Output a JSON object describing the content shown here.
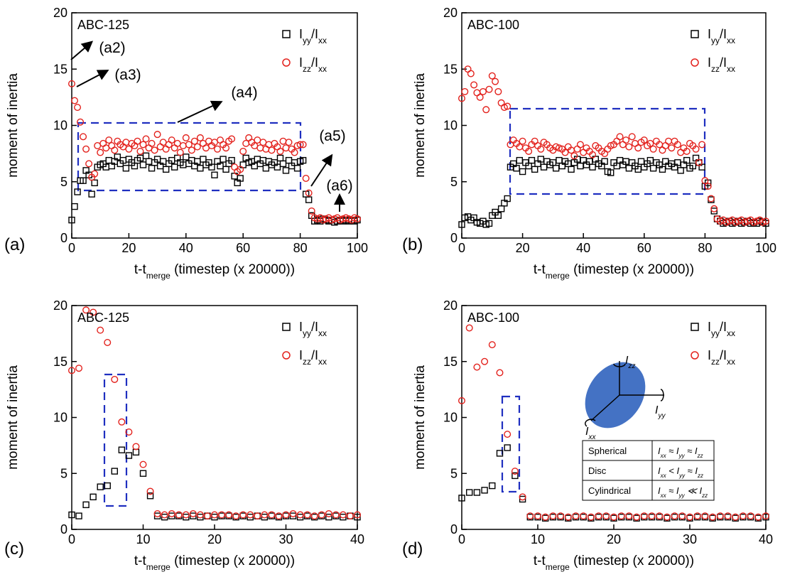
{
  "chart_data": [
    {
      "type": "scatter",
      "panel_label": "(a)",
      "label": "ABC-125",
      "ylabel": "moment of inertia",
      "xlabel": [
        "t-t",
        "merge",
        " (timestep (x 20000))"
      ],
      "annotations": [
        "(a2)",
        "(a3)",
        "(a4)",
        "(a5)",
        "(a6)"
      ],
      "xlim": [
        0,
        100
      ],
      "ylim": [
        0,
        20
      ],
      "xticks": [
        0,
        20,
        40,
        60,
        80,
        100
      ],
      "yticks": [
        0,
        5,
        10,
        15,
        20
      ],
      "x": [
        0,
        1,
        2,
        3,
        4,
        5,
        6,
        7,
        8,
        9,
        10,
        11,
        12,
        13,
        14,
        15,
        16,
        17,
        18,
        19,
        20,
        21,
        22,
        23,
        24,
        25,
        26,
        27,
        28,
        29,
        30,
        31,
        32,
        33,
        34,
        35,
        36,
        37,
        38,
        39,
        40,
        41,
        42,
        43,
        44,
        45,
        46,
        47,
        48,
        49,
        50,
        51,
        52,
        53,
        54,
        55,
        56,
        57,
        58,
        59,
        60,
        61,
        62,
        63,
        64,
        65,
        66,
        67,
        68,
        69,
        70,
        71,
        72,
        73,
        74,
        75,
        76,
        77,
        78,
        79,
        80,
        81,
        82,
        83,
        84,
        85,
        86,
        87,
        88,
        89,
        90,
        91,
        92,
        93,
        94,
        95,
        96,
        97,
        98,
        99,
        100
      ],
      "series": [
        {
          "name": [
            "I",
            "yy",
            "/I",
            "xx"
          ],
          "marker": "square",
          "color": "#000000",
          "values": [
            1.6,
            2.8,
            4.1,
            5.1,
            5.1,
            6.0,
            5.6,
            3.9,
            4.9,
            6.3,
            6.5,
            6.6,
            6.3,
            6.9,
            6.4,
            6.8,
            7.2,
            6.6,
            6.9,
            6.2,
            7.0,
            6.7,
            6.4,
            6.9,
            7.1,
            6.5,
            7.3,
            6.8,
            6.2,
            6.7,
            7.0,
            6.4,
            6.8,
            6.1,
            6.6,
            6.9,
            6.3,
            7.1,
            6.7,
            6.5,
            7.2,
            6.6,
            6.9,
            6.4,
            6.8,
            6.2,
            7.0,
            6.5,
            6.7,
            6.3,
            5.6,
            6.8,
            6.4,
            7.0,
            6.1,
            6.6,
            6.9,
            5.5,
            4.9,
            5.3,
            6.5,
            7.1,
            6.7,
            6.8,
            6.4,
            7.0,
            6.6,
            6.9,
            6.2,
            6.8,
            6.5,
            6.7,
            6.3,
            7.1,
            6.6,
            6.0,
            6.9,
            6.4,
            6.7,
            6.2,
            6.8,
            6.9,
            3.9,
            3.4,
            2.0,
            1.5,
            1.6,
            1.5,
            1.7,
            1.6,
            1.5,
            1.6,
            1.4,
            1.5,
            1.6,
            1.5,
            1.6,
            1.5,
            1.6,
            1.5,
            1.6
          ]
        },
        {
          "name": [
            "I",
            "zz",
            "/I",
            "xx"
          ],
          "marker": "circle",
          "color": "#e3211c",
          "values": [
            13.7,
            12.2,
            11.6,
            10.3,
            9.0,
            7.9,
            6.6,
            5.4,
            5.7,
            8.2,
            7.6,
            8.4,
            8.0,
            8.7,
            8.2,
            7.8,
            8.6,
            8.3,
            8.1,
            8.5,
            7.9,
            8.4,
            8.2,
            8.6,
            7.7,
            8.3,
            8.8,
            8.0,
            8.4,
            7.8,
            9.2,
            8.1,
            8.5,
            7.9,
            8.3,
            8.7,
            8.0,
            8.4,
            7.6,
            8.2,
            8.9,
            8.3,
            7.8,
            8.6,
            8.1,
            8.9,
            8.4,
            8.0,
            8.6,
            8.2,
            8.5,
            7.9,
            8.7,
            8.3,
            8.0,
            8.6,
            8.8,
            6.3,
            5.9,
            6.1,
            7.7,
            8.4,
            8.9,
            8.5,
            8.2,
            8.7,
            8.0,
            8.5,
            7.9,
            8.3,
            7.8,
            8.4,
            8.1,
            7.7,
            8.6,
            8.0,
            8.5,
            7.9,
            7.6,
            8.2,
            8.3,
            8.3,
            5.3,
            4.0,
            2.4,
            1.8,
            1.7,
            1.8,
            1.6,
            1.7,
            1.8,
            1.6,
            1.7,
            1.8,
            1.6,
            1.7,
            1.8,
            1.7,
            1.6,
            1.8,
            1.7
          ]
        }
      ]
    },
    {
      "type": "scatter",
      "panel_label": "(b)",
      "label": "ABC-100",
      "ylabel": "moment of inertia",
      "xlabel": [
        "t-t",
        "merge",
        " (timestep (x 20000))"
      ],
      "xlim": [
        0,
        100
      ],
      "ylim": [
        0,
        20
      ],
      "xticks": [
        0,
        20,
        40,
        60,
        80,
        100
      ],
      "yticks": [
        0,
        5,
        10,
        15,
        20
      ],
      "x": [
        0,
        1,
        2,
        3,
        4,
        5,
        6,
        7,
        8,
        9,
        10,
        11,
        12,
        13,
        14,
        15,
        16,
        17,
        18,
        19,
        20,
        21,
        22,
        23,
        24,
        25,
        26,
        27,
        28,
        29,
        30,
        31,
        32,
        33,
        34,
        35,
        36,
        37,
        38,
        39,
        40,
        41,
        42,
        43,
        44,
        45,
        46,
        47,
        48,
        49,
        50,
        51,
        52,
        53,
        54,
        55,
        56,
        57,
        58,
        59,
        60,
        61,
        62,
        63,
        64,
        65,
        66,
        67,
        68,
        69,
        70,
        71,
        72,
        73,
        74,
        75,
        76,
        77,
        78,
        79,
        80,
        81,
        82,
        83,
        84,
        85,
        86,
        87,
        88,
        89,
        90,
        91,
        92,
        93,
        94,
        95,
        96,
        97,
        98,
        99,
        100
      ],
      "series": [
        {
          "name": [
            "I",
            "yy",
            "/I",
            "xx"
          ],
          "marker": "square",
          "color": "#000000",
          "values": [
            1.2,
            1.8,
            1.9,
            1.6,
            1.8,
            1.4,
            1.3,
            1.5,
            1.2,
            1.3,
            2.0,
            2.3,
            2.0,
            2.6,
            3.1,
            3.5,
            6.3,
            6.6,
            6.2,
            6.9,
            5.9,
            6.7,
            6.4,
            6.9,
            6.1,
            6.6,
            7.0,
            6.3,
            6.8,
            6.5,
            6.7,
            6.2,
            6.9,
            6.4,
            6.8,
            6.6,
            6.1,
            6.7,
            7.0,
            6.4,
            6.9,
            6.5,
            6.8,
            6.3,
            7.0,
            6.6,
            6.4,
            6.8,
            5.9,
            5.8,
            6.7,
            6.4,
            6.9,
            6.5,
            6.8,
            6.2,
            6.7,
            6.4,
            6.1,
            6.8,
            6.3,
            6.6,
            6.9,
            6.2,
            6.7,
            6.5,
            6.1,
            6.8,
            6.4,
            6.6,
            6.3,
            6.7,
            6.0,
            6.5,
            6.9,
            6.2,
            6.4,
            7.1,
            6.7,
            6.3,
            4.6,
            4.9,
            3.4,
            2.4,
            1.7,
            1.5,
            1.3,
            1.4,
            1.5,
            1.3,
            1.4,
            1.5,
            1.3,
            1.4,
            1.5,
            1.3,
            1.4,
            1.3,
            1.5,
            1.4,
            1.3
          ]
        },
        {
          "name": [
            "I",
            "zz",
            "/I",
            "xx"
          ],
          "marker": "circle",
          "color": "#e3211c",
          "values": [
            12.4,
            13.0,
            15.0,
            14.6,
            13.6,
            12.9,
            12.5,
            13.0,
            11.4,
            13.2,
            14.4,
            13.9,
            13.0,
            12.0,
            11.6,
            11.7,
            8.3,
            8.7,
            8.4,
            8.1,
            8.6,
            8.0,
            7.7,
            8.3,
            8.6,
            8.2,
            7.9,
            8.5,
            8.3,
            8.0,
            7.8,
            8.1,
            8.0,
            7.9,
            7.6,
            8.1,
            7.8,
            7.3,
            7.9,
            8.3,
            7.6,
            8.0,
            7.7,
            7.4,
            8.2,
            8.0,
            7.7,
            7.5,
            7.9,
            8.2,
            8.3,
            8.6,
            9.0,
            8.3,
            8.7,
            8.1,
            9.0,
            8.4,
            8.0,
            8.5,
            8.7,
            8.2,
            8.4,
            7.9,
            8.6,
            8.3,
            7.8,
            8.2,
            8.6,
            8.0,
            8.6,
            8.3,
            7.6,
            8.0,
            7.7,
            8.4,
            8.2,
            7.9,
            6.7,
            8.3,
            5.1,
            4.6,
            3.5,
            2.6,
            1.7,
            1.5,
            1.6,
            1.4,
            1.5,
            1.6,
            1.4,
            1.5,
            1.6,
            1.4,
            1.5,
            1.6,
            1.4,
            1.5,
            1.6,
            1.4,
            1.5
          ]
        }
      ]
    },
    {
      "type": "scatter",
      "panel_label": "(c)",
      "label": "ABC-125",
      "ylabel": "moment of inertia",
      "xlabel": [
        "t-t",
        "merge",
        " (timestep (x 20000))"
      ],
      "xlim": [
        0,
        40
      ],
      "ylim": [
        0,
        20
      ],
      "xticks": [
        0,
        10,
        20,
        30,
        40
      ],
      "yticks": [
        0,
        5,
        10,
        15,
        20
      ],
      "x": [
        0,
        1,
        2,
        3,
        4,
        5,
        6,
        7,
        8,
        9,
        10,
        11,
        12,
        13,
        14,
        15,
        16,
        17,
        18,
        19,
        20,
        21,
        22,
        23,
        24,
        25,
        26,
        27,
        28,
        29,
        30,
        31,
        32,
        33,
        34,
        35,
        36,
        37,
        38,
        39,
        40
      ],
      "series": [
        {
          "name": [
            "I",
            "yy",
            "/I",
            "xx"
          ],
          "marker": "square",
          "color": "#000000",
          "values": [
            1.3,
            1.2,
            2.2,
            2.9,
            3.8,
            3.9,
            5.2,
            7.1,
            6.6,
            6.9,
            5.0,
            3.0,
            1.2,
            1.1,
            1.2,
            1.2,
            1.1,
            1.2,
            1.1,
            1.2,
            1.1,
            1.2,
            1.2,
            1.1,
            1.2,
            1.1,
            1.2,
            1.1,
            1.2,
            1.1,
            1.2,
            1.2,
            1.1,
            1.2,
            1.1,
            1.2,
            1.1,
            1.2,
            1.1,
            1.2,
            1.1
          ]
        },
        {
          "name": [
            "I",
            "zz",
            "/I",
            "xx"
          ],
          "marker": "circle",
          "color": "#e3211c",
          "values": [
            14.2,
            14.4,
            19.6,
            19.4,
            17.8,
            16.7,
            13.4,
            9.6,
            8.7,
            7.4,
            5.8,
            3.4,
            1.4,
            1.3,
            1.4,
            1.3,
            1.3,
            1.4,
            1.3,
            1.2,
            1.3,
            1.3,
            1.3,
            1.2,
            1.3,
            1.3,
            1.2,
            1.3,
            1.3,
            1.2,
            1.3,
            1.4,
            1.3,
            1.3,
            1.2,
            1.3,
            1.4,
            1.3,
            1.3,
            1.2,
            1.3
          ]
        }
      ]
    },
    {
      "type": "scatter",
      "panel_label": "(d)",
      "label": "ABC-100",
      "ylabel": "moment of inertia",
      "xlabel": [
        "t-t",
        "merge",
        " (timestep (x 20000))"
      ],
      "xlim": [
        0,
        40
      ],
      "ylim": [
        0,
        20
      ],
      "xticks": [
        0,
        10,
        20,
        30,
        40
      ],
      "yticks": [
        0,
        5,
        10,
        15,
        20
      ],
      "x": [
        0,
        1,
        2,
        3,
        4,
        5,
        6,
        7,
        8,
        9,
        10,
        11,
        12,
        13,
        14,
        15,
        16,
        17,
        18,
        19,
        20,
        21,
        22,
        23,
        24,
        25,
        26,
        27,
        28,
        29,
        30,
        31,
        32,
        33,
        34,
        35,
        36,
        37,
        38,
        39,
        40
      ],
      "series": [
        {
          "name": [
            "I",
            "yy",
            "/I",
            "xx"
          ],
          "marker": "square",
          "color": "#000000",
          "values": [
            2.8,
            3.3,
            3.3,
            3.5,
            3.9,
            6.8,
            7.3,
            4.8,
            2.7,
            1.1,
            1.1,
            1.0,
            1.1,
            1.1,
            1.0,
            1.1,
            1.1,
            1.0,
            1.1,
            1.1,
            1.0,
            1.1,
            1.1,
            1.0,
            1.1,
            1.1,
            1.1,
            1.0,
            1.1,
            1.1,
            1.0,
            1.1,
            1.1,
            1.0,
            1.1,
            1.1,
            1.0,
            1.1,
            1.1,
            1.0,
            1.1
          ]
        },
        {
          "name": [
            "I",
            "zz",
            "/I",
            "xx"
          ],
          "marker": "circle",
          "color": "#e3211c",
          "values": [
            11.5,
            18.0,
            14.5,
            15.0,
            16.5,
            14.0,
            8.5,
            5.2,
            2.9,
            1.2,
            1.2,
            1.1,
            1.2,
            1.2,
            1.1,
            1.2,
            1.2,
            1.1,
            1.2,
            1.2,
            1.1,
            1.2,
            1.2,
            1.1,
            1.2,
            1.2,
            1.2,
            1.1,
            1.2,
            1.2,
            1.1,
            1.2,
            1.2,
            1.1,
            1.2,
            1.2,
            1.1,
            1.2,
            1.2,
            1.1,
            1.2
          ]
        }
      ],
      "inset": {
        "axis_labels": [
          [
            "I",
            "zz"
          ],
          [
            "I",
            "yy"
          ],
          [
            "I",
            "xx"
          ]
        ],
        "table": [
          [
            "Spherical",
            [
              "I",
              "xx",
              " ≈ I",
              "yy",
              " ≈ I",
              "zz"
            ]
          ],
          [
            "Disc",
            [
              "I",
              "xx",
              " < I",
              "yy",
              " ≈ I",
              "zz"
            ]
          ],
          [
            "Cylindrical",
            [
              "I",
              "xx",
              " ≈ I",
              "yy",
              " ≪ I",
              "zz"
            ]
          ]
        ]
      }
    }
  ]
}
